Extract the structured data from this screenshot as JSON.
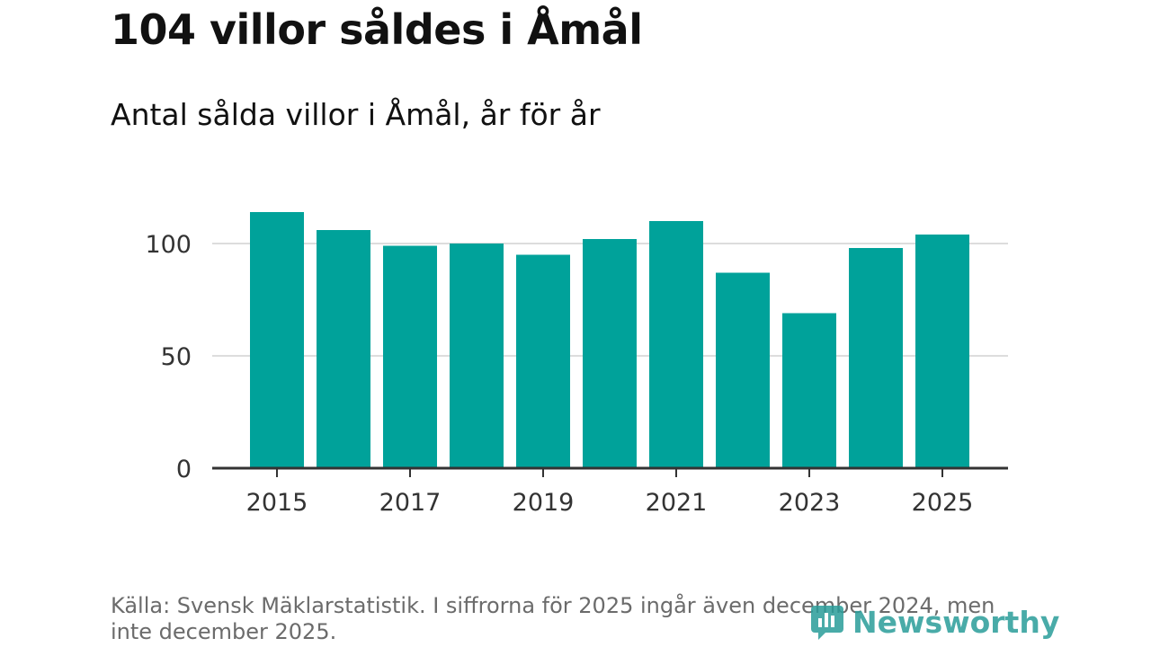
{
  "header": {
    "title": "104 villor såldes i Åmål",
    "subtitle": "Antal sålda villor i Åmål, år för år"
  },
  "footer": {
    "source": "Källa: Svensk Mäklarstatistik. I siffrorna för 2025 ingår även december 2024, men inte december 2025.",
    "logo_text": "Newsworthy"
  },
  "colors": {
    "bar": "#00a29a",
    "grid": "#dddddd",
    "axis": "#333333",
    "logo": "#2a9d9a"
  },
  "chart_data": {
    "type": "bar",
    "title": "104 villor såldes i Åmål",
    "subtitle": "Antal sålda villor i Åmål, år för år",
    "xlabel": "",
    "ylabel": "",
    "categories": [
      "2015",
      "2016",
      "2017",
      "2018",
      "2019",
      "2020",
      "2021",
      "2022",
      "2023",
      "2024",
      "2025"
    ],
    "values": [
      114,
      106,
      99,
      100,
      95,
      102,
      110,
      87,
      69,
      98,
      104
    ],
    "x_tick_labels": [
      "2015",
      "2017",
      "2019",
      "2021",
      "2023",
      "2025"
    ],
    "y_ticks": [
      0,
      50,
      100
    ],
    "y_tick_labels": [
      "0",
      "50",
      "100"
    ],
    "ylim": [
      0,
      120
    ],
    "grid": true
  }
}
